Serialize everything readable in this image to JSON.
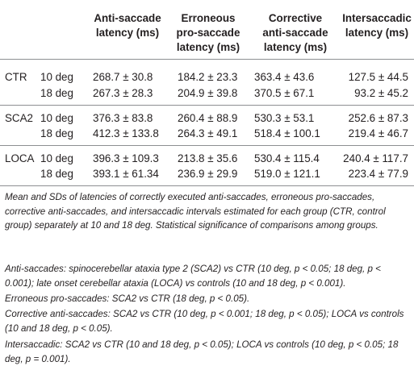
{
  "header": {
    "col1": "Anti-saccade\nlatency (ms)",
    "col2": "Erroneous\npro-saccade\nlatency (ms)",
    "col3": "Corrective\nanti-saccade\nlatency (ms)",
    "col4": "Intersaccadic\nlatency (ms)"
  },
  "groups": [
    {
      "name": "CTR",
      "rows": [
        {
          "deg": "10 deg",
          "v1": "268.7 ± 30.8",
          "v2": "184.2 ± 23.3",
          "v3": "363.4 ± 43.6",
          "v4": "127.5 ± 44.5"
        },
        {
          "deg": "18 deg",
          "v1": "267.3 ± 28.3",
          "v2": "204.9 ± 39.8",
          "v3": "370.5 ± 67.1",
          "v4": "93.2 ± 45.2"
        }
      ]
    },
    {
      "name": "SCA2",
      "rows": [
        {
          "deg": "10 deg",
          "v1": "376.3 ± 83.8",
          "v2": "260.4 ± 88.9",
          "v3": "530.3 ± 53.1",
          "v4": "252.6 ± 87.3"
        },
        {
          "deg": "18 deg",
          "v1": "412.3 ± 133.8",
          "v2": "264.3 ± 49.1",
          "v3": "518.4 ± 100.1",
          "v4": "219.4 ± 46.7"
        }
      ]
    },
    {
      "name": "LOCA",
      "rows": [
        {
          "deg": "10 deg",
          "v1": "396.3 ± 109.3",
          "v2": "213.8 ± 35.6",
          "v3": "530.4 ± 115.4",
          "v4": "240.4 ± 117.7"
        },
        {
          "deg": "18 deg",
          "v1": "393.1 ± 61.34",
          "v2": "236.9 ± 29.9",
          "v3": "519.0 ± 121.1",
          "v4": "223.4 ± 77.9"
        }
      ]
    }
  ],
  "notes": [
    "Mean and SDs of latencies of correctly executed anti-saccades, erroneous pro-saccades, corrective anti-saccades, and intersaccadic intervals estimated for each group (CTR, control group) separately at 10 and 18 deg. Statistical significance of comparisons among groups.",
    "Anti-saccades: spinocerebellar ataxia type 2 (SCA2) vs CTR (10 deg, p < 0.05; 18 deg, p < 0.001); late onset cerebellar ataxia (LOCA) vs controls (10 and 18 deg, p < 0.001).",
    "Erroneous pro-saccades: SCA2 vs CTR (18 deg, p < 0.05).",
    "Corrective anti-saccades: SCA2 vs CTR (10 deg, p < 0.001; 18 deg, p < 0.05); LOCA vs controls (10 and 18 deg, p < 0.05).",
    "Intersaccadic: SCA2 vs CTR (10 and 18 deg, p < 0.05); LOCA vs controls (10 deg, p < 0.05; 18 deg, p = 0.001)."
  ]
}
